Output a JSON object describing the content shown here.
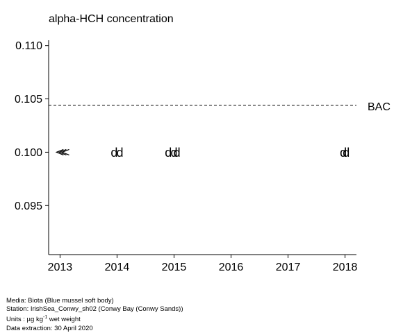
{
  "chart_data": {
    "type": "scatter",
    "title": "alpha-HCH concentration",
    "xlabel": "",
    "ylabel": "",
    "xlim": [
      2012.8,
      2018.2
    ],
    "ylim": [
      0.0904,
      0.1105
    ],
    "x_ticks": [
      "2013",
      "2014",
      "2015",
      "2016",
      "2017",
      "2018"
    ],
    "y_ticks": [
      "0.095",
      "0.100",
      "0.105",
      "0.110"
    ],
    "grid": false,
    "reference_lines": [
      {
        "label": "BAC",
        "value": 0.1044,
        "style": "dashed"
      }
    ],
    "points": [
      {
        "x": 2012.95,
        "y": 0.1,
        "marker": "<"
      },
      {
        "x": 2013.0,
        "y": 0.1,
        "marker": "<"
      },
      {
        "x": 2013.05,
        "y": 0.1,
        "marker": "<"
      },
      {
        "x": 2013.95,
        "y": 0.1,
        "marker": "d"
      },
      {
        "x": 2014.05,
        "y": 0.1,
        "marker": "d"
      },
      {
        "x": 2014.9,
        "y": 0.1,
        "marker": "d"
      },
      {
        "x": 2015.0,
        "y": 0.1,
        "marker": "d"
      },
      {
        "x": 2015.05,
        "y": 0.1,
        "marker": "d"
      },
      {
        "x": 2017.97,
        "y": 0.1,
        "marker": "d"
      },
      {
        "x": 2018.02,
        "y": 0.1,
        "marker": "d"
      }
    ]
  },
  "footer": {
    "media": "Media: Biota (Blue mussel soft body)",
    "station": "Station: IrishSea_Conwy_sh02 (Conwy Bay (Conwy Sands))",
    "units_prefix": "Units : µg kg",
    "units_exponent": "-1",
    "units_suffix": " wet weight",
    "extraction": "Data extraction: 30 April 2020"
  }
}
